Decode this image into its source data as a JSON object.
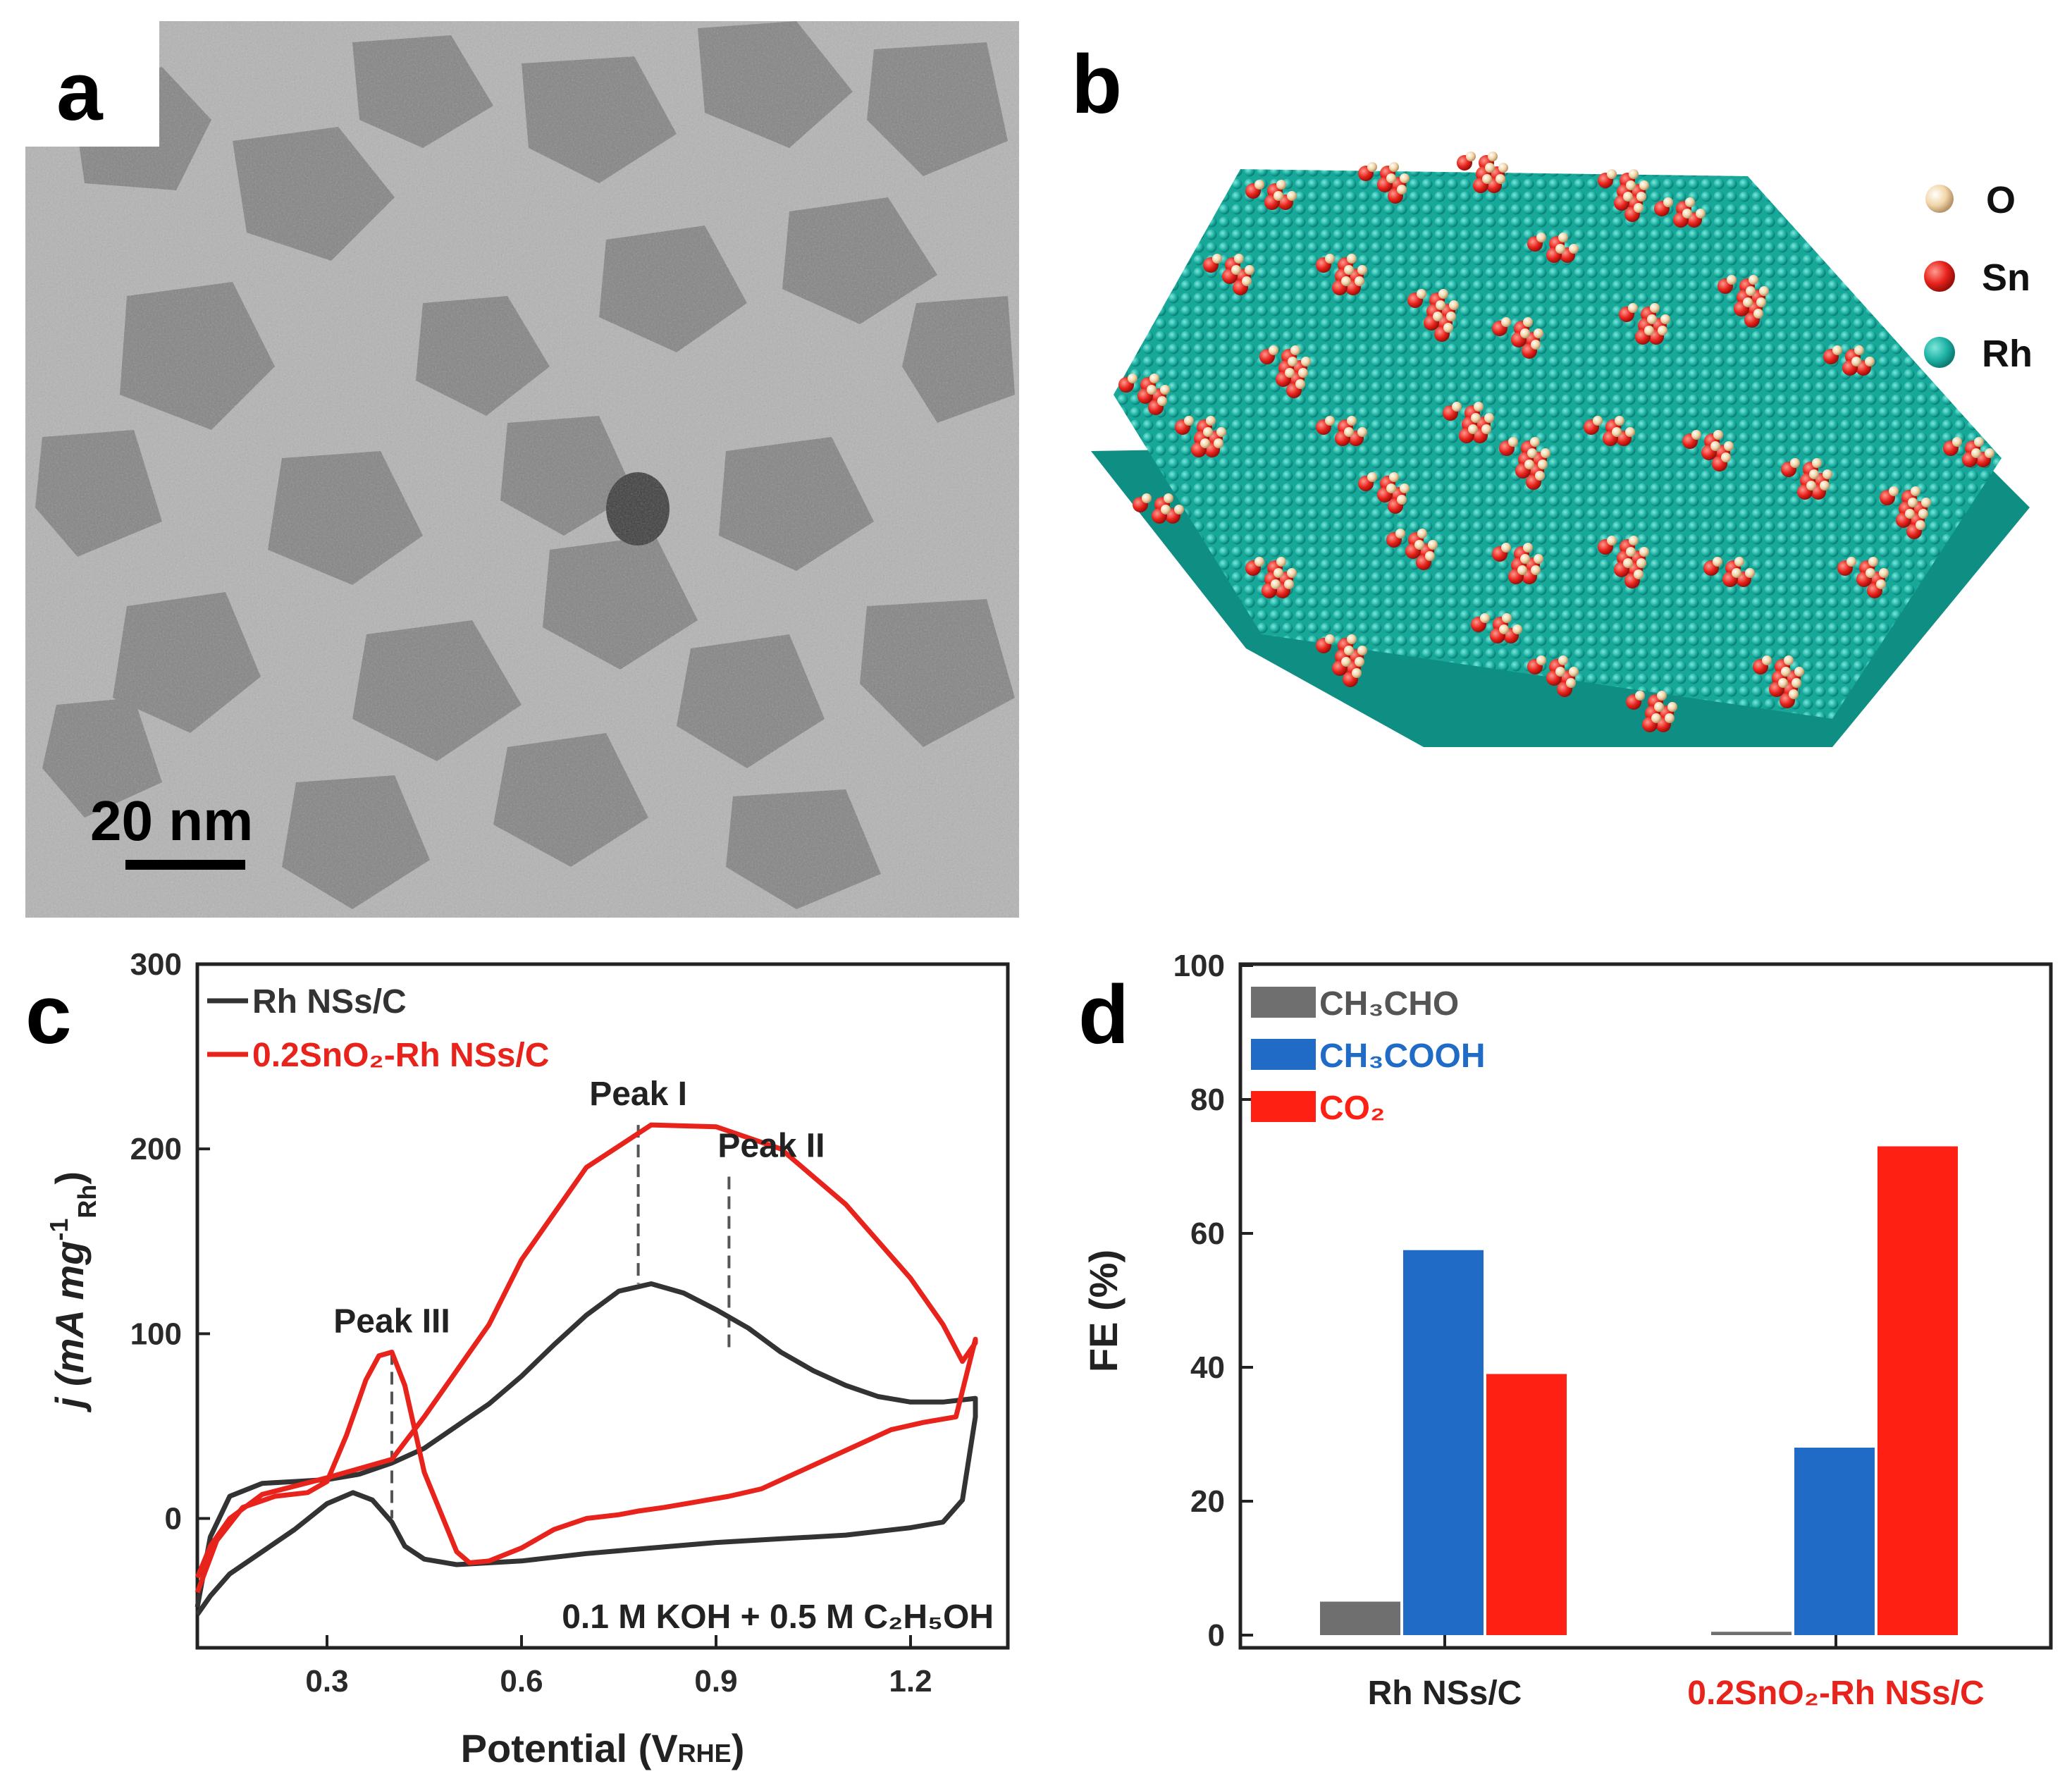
{
  "panels": {
    "a": {
      "letter": "a",
      "scale_bar": "20 nm"
    },
    "b": {
      "letter": "b",
      "legend": [
        {
          "label": "O",
          "color": "#f2d6a8"
        },
        {
          "label": "Sn",
          "color": "#e8231c"
        },
        {
          "label": "Rh",
          "color": "#1fb4a6"
        }
      ]
    },
    "c": {
      "letter": "c"
    },
    "d": {
      "letter": "d"
    }
  },
  "chart_data": [
    {
      "panel": "c",
      "type": "line",
      "xlabel": "Potential (V",
      "xlabel_sub": "RHE",
      "xlabel_end": ")",
      "ylabel": "j (mA mg",
      "ylabel_sup": "-1",
      "ylabel_sub": "Rh",
      "ylabel_end": ")",
      "xlim": [
        0.1,
        1.35
      ],
      "ylim": [
        -70,
        300
      ],
      "xticks": [
        "0.3",
        "0.6",
        "0.9",
        "1.2"
      ],
      "xtick_values": [
        0.3,
        0.6,
        0.9,
        1.2
      ],
      "yticks": [
        "0",
        "100",
        "200",
        "300"
      ],
      "ytick_values": [
        0,
        100,
        200,
        300
      ],
      "annotation": "0.1 M KOH + 0.5 M C₂H₅OH",
      "peak_labels": [
        {
          "text": "Peak I",
          "x": 0.78,
          "y": 213
        },
        {
          "text": "Peak II",
          "x": 0.92,
          "y": 185
        },
        {
          "text": "Peak III",
          "x": 0.4,
          "y": 90
        }
      ],
      "series": [
        {
          "name": "Rh NSs/C",
          "color": "#333333",
          "x": [
            0.1,
            0.12,
            0.15,
            0.2,
            0.25,
            0.3,
            0.35,
            0.4,
            0.45,
            0.5,
            0.55,
            0.6,
            0.65,
            0.7,
            0.75,
            0.8,
            0.85,
            0.9,
            0.95,
            1.0,
            1.05,
            1.1,
            1.15,
            1.2,
            1.25,
            1.3,
            1.3,
            1.28,
            1.25,
            1.2,
            1.1,
            1.0,
            0.9,
            0.8,
            0.7,
            0.6,
            0.55,
            0.5,
            0.45,
            0.42,
            0.4,
            0.37,
            0.34,
            0.3,
            0.25,
            0.2,
            0.15,
            0.12,
            0.1
          ],
          "y": [
            -48,
            -10,
            12,
            19,
            20,
            21,
            24,
            30,
            38,
            50,
            62,
            77,
            94,
            110,
            123,
            127,
            122,
            113,
            103,
            90,
            80,
            72,
            66,
            63,
            63,
            65,
            55,
            10,
            -2,
            -5,
            -9,
            -11,
            -13,
            -16,
            -19,
            -23,
            -24,
            -25,
            -22,
            -15,
            -2,
            10,
            14,
            8,
            -6,
            -18,
            -30,
            -42,
            -52
          ]
        },
        {
          "name": "0.2SnO₂-Rh NSs/C",
          "color": "#e8231c",
          "x": [
            0.1,
            0.13,
            0.17,
            0.22,
            0.27,
            0.3,
            0.33,
            0.36,
            0.38,
            0.4,
            0.42,
            0.45,
            0.5,
            0.52,
            0.55,
            0.6,
            0.65,
            0.7,
            0.75,
            0.78,
            0.82,
            0.87,
            0.92,
            0.97,
            1.02,
            1.07,
            1.12,
            1.17,
            1.22,
            1.27,
            1.3,
            1.3,
            1.28,
            1.25,
            1.2,
            1.1,
            1.0,
            0.9,
            0.8,
            0.7,
            0.6,
            0.55,
            0.5,
            0.45,
            0.4,
            0.3,
            0.2,
            0.15,
            0.12,
            0.1
          ],
          "y": [
            -40,
            -12,
            6,
            12,
            14,
            20,
            45,
            75,
            88,
            90,
            72,
            25,
            -18,
            -24,
            -23,
            -16,
            -6,
            0,
            2,
            4,
            6,
            9,
            12,
            16,
            24,
            32,
            40,
            48,
            52,
            55,
            97,
            95,
            85,
            105,
            130,
            170,
            200,
            212,
            213,
            190,
            140,
            105,
            80,
            55,
            32,
            22,
            13,
            0,
            -15,
            -32
          ]
        }
      ]
    },
    {
      "panel": "d",
      "type": "bar",
      "ylabel": "FE (%)",
      "ylim": [
        0,
        100
      ],
      "yticks": [
        "0",
        "20",
        "40",
        "60",
        "80",
        "100"
      ],
      "ytick_values": [
        0,
        20,
        40,
        60,
        80,
        100
      ],
      "categories": [
        "Rh NSs/C",
        "0.2SnO₂-Rh NSs/C"
      ],
      "category_colors": [
        "#222222",
        "#e8231c"
      ],
      "series": [
        {
          "name": "CH₃CHO",
          "color": "#6f6f6f",
          "values": [
            5,
            0.5
          ]
        },
        {
          "name": "CH₃COOH",
          "color": "#1f6bc6",
          "values": [
            57.5,
            28
          ]
        },
        {
          "name": "CO₂",
          "color": "#ff2014",
          "values": [
            39,
            73
          ]
        }
      ]
    }
  ]
}
